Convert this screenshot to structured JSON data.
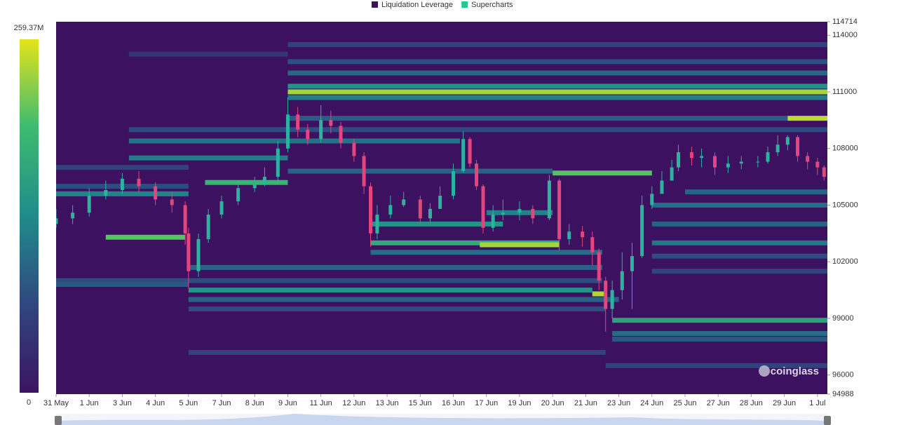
{
  "chart_data": {
    "type": "heatmap",
    "series": [
      {
        "name": "Liquidation Leverage",
        "color": "#3c1160"
      },
      {
        "name": "Supercharts",
        "color": "#22c98c"
      }
    ],
    "xlim": [
      0,
      23.3
    ],
    "xticks": [
      {
        "value": 0,
        "label": "31 May"
      },
      {
        "value": 1,
        "label": "1 Jun"
      },
      {
        "value": 2,
        "label": "3 Jun"
      },
      {
        "value": 3,
        "label": "4 Jun"
      },
      {
        "value": 4,
        "label": "5 Jun"
      },
      {
        "value": 5,
        "label": "7 Jun"
      },
      {
        "value": 6,
        "label": "8 Jun"
      },
      {
        "value": 7,
        "label": "9 Jun"
      },
      {
        "value": 8,
        "label": "11 Jun"
      },
      {
        "value": 9,
        "label": "12 Jun"
      },
      {
        "value": 10,
        "label": "13 Jun"
      },
      {
        "value": 11,
        "label": "15 Jun"
      },
      {
        "value": 12,
        "label": "16 Jun"
      },
      {
        "value": 13,
        "label": "17 Jun"
      },
      {
        "value": 14,
        "label": "19 Jun"
      },
      {
        "value": 15,
        "label": "20 Jun"
      },
      {
        "value": 16,
        "label": "21 Jun"
      },
      {
        "value": 17,
        "label": "23 Jun"
      },
      {
        "value": 18,
        "label": "24 Jun"
      },
      {
        "value": 19,
        "label": "25 Jun"
      },
      {
        "value": 20,
        "label": "27 Jun"
      },
      {
        "value": 21,
        "label": "28 Jun"
      },
      {
        "value": 22,
        "label": "29 Jun"
      },
      {
        "value": 23,
        "label": "1 Jul"
      }
    ],
    "ylim": [
      94988,
      114714
    ],
    "yticks": [
      94988,
      96000,
      99000,
      102000,
      105000,
      108000,
      111000,
      114000,
      114714
    ],
    "colorbar": {
      "lim": [
        0,
        259.37
      ],
      "ticks": [
        {
          "value": 259.37,
          "label": "259.37M"
        },
        0
      ],
      "colors": [
        "#3d1462",
        "#30477f",
        "#1f8c8b",
        "#3cbb70",
        "#e3e41c"
      ]
    },
    "heatmap": {
      "levels": [
        111000,
        111300,
        110700,
        112000,
        112600,
        113500,
        109600,
        109600,
        109000,
        108400,
        107500,
        106800,
        106700,
        106200,
        105600,
        104600,
        104000,
        103300,
        103000,
        102900,
        102500,
        101700,
        101000,
        100500,
        100300,
        100000,
        99500,
        98900,
        98200,
        97900,
        97200,
        96500,
        104000,
        103000,
        102300,
        101500,
        105000,
        105700,
        113000,
        107000,
        106000,
        100800
      ],
      "x0": [
        7,
        7,
        7,
        7,
        7,
        7,
        7,
        22.1,
        2.2,
        2.2,
        2.2,
        7,
        15,
        4.5,
        0,
        13,
        9.5,
        1.5,
        9.5,
        12.8,
        9.5,
        4,
        0,
        4,
        16.2,
        4,
        4,
        16.8,
        16.8,
        16.8,
        4,
        16.6,
        18,
        18,
        18,
        18,
        18,
        19,
        2.2,
        0,
        0,
        0
      ],
      "x1": [
        23.3,
        23.3,
        23.3,
        23.3,
        23.3,
        23.3,
        22.1,
        23.3,
        23.3,
        12.2,
        7,
        15,
        18,
        7,
        4,
        15,
        13.5,
        3.9,
        15.2,
        15.2,
        16.5,
        16.5,
        16.5,
        16.2,
        16.6,
        17,
        16.6,
        23.3,
        23.3,
        23.3,
        16.6,
        23.3,
        23.3,
        23.3,
        23.3,
        23.3,
        23.3,
        23.3,
        7,
        4,
        4,
        4
      ],
      "values": [
        235,
        140,
        115,
        95,
        75,
        60,
        85,
        245,
        70,
        105,
        115,
        90,
        205,
        185,
        120,
        120,
        140,
        205,
        170,
        235,
        100,
        90,
        70,
        140,
        240,
        90,
        70,
        160,
        100,
        80,
        60,
        60,
        90,
        110,
        70,
        60,
        100,
        90,
        45,
        60,
        70,
        80
      ]
    },
    "candles": {
      "up_color": "#2bb3a0",
      "down_color": "#e3457c",
      "x": [
        0,
        0.5,
        1,
        1.5,
        2,
        2.5,
        3,
        3.5,
        3.9,
        4,
        4.3,
        4.6,
        5,
        5.5,
        6,
        6.3,
        6.7,
        7,
        7.3,
        7.6,
        8,
        8.3,
        8.6,
        9,
        9.3,
        9.5,
        9.7,
        10.1,
        10.5,
        11,
        11.3,
        11.6,
        12,
        12.3,
        12.5,
        12.7,
        12.9,
        13.2,
        13.5,
        14,
        14.4,
        14.9,
        15.2,
        15.5,
        15.9,
        16.2,
        16.4,
        16.6,
        16.8,
        17.1,
        17.4,
        17.7,
        18,
        18.3,
        18.6,
        18.8,
        19.2,
        19.5,
        19.9,
        20.3,
        20.7,
        21.2,
        21.5,
        21.8,
        22.1,
        22.4,
        22.7,
        23,
        23.2
      ],
      "open": [
        104000,
        104300,
        104600,
        105500,
        105800,
        106400,
        106000,
        105300,
        105000,
        103500,
        101500,
        103200,
        104500,
        105200,
        105900,
        106100,
        106500,
        108000,
        109800,
        109000,
        108500,
        109500,
        109200,
        108300,
        107600,
        106000,
        103500,
        104500,
        105000,
        105300,
        104300,
        104800,
        105500,
        106800,
        108500,
        107200,
        106000,
        103800,
        104500,
        104600,
        104800,
        104300,
        106300,
        103200,
        103600,
        103300,
        102500,
        101000,
        99500,
        100500,
        101500,
        102300,
        105000,
        105600,
        106300,
        107000,
        107800,
        107500,
        107600,
        107000,
        107200,
        107300,
        107300,
        107800,
        108200,
        108600,
        107600,
        107300,
        107000
      ],
      "high": [
        104800,
        105000,
        105900,
        106300,
        106700,
        106800,
        106200,
        105700,
        105200,
        103800,
        103500,
        104800,
        105500,
        106200,
        106500,
        107000,
        108400,
        110700,
        110200,
        109300,
        110300,
        110000,
        109400,
        108500,
        107800,
        106200,
        105000,
        105500,
        105700,
        105500,
        105100,
        106000,
        107200,
        108900,
        108600,
        107400,
        106100,
        105000,
        105300,
        105200,
        105000,
        106600,
        106400,
        104000,
        103900,
        103600,
        102700,
        101200,
        101000,
        102500,
        103000,
        105500,
        106000,
        106800,
        107400,
        108200,
        108100,
        108000,
        107800,
        107600,
        107600,
        107600,
        108100,
        108700,
        108700,
        108700,
        107800,
        107500,
        107100
      ],
      "low": [
        103800,
        104000,
        104400,
        105300,
        105600,
        105700,
        105000,
        104600,
        102900,
        100600,
        101200,
        103000,
        104300,
        105000,
        105700,
        106000,
        106300,
        107800,
        108600,
        108200,
        108300,
        108800,
        108000,
        107300,
        105600,
        102800,
        103200,
        104300,
        104900,
        104000,
        104100,
        105000,
        105300,
        106700,
        107000,
        105800,
        103500,
        103600,
        104200,
        104200,
        104000,
        104200,
        102600,
        102900,
        102800,
        101800,
        100500,
        98300,
        99000,
        100000,
        99500,
        102200,
        104800,
        105800,
        106600,
        106800,
        107100,
        107000,
        106600,
        106700,
        106900,
        107000,
        107200,
        107600,
        107900,
        107300,
        106900,
        106600,
        106300
      ],
      "close": [
        104300,
        104600,
        105500,
        105800,
        106400,
        106000,
        105300,
        105000,
        103500,
        101500,
        103200,
        104500,
        105200,
        105900,
        106100,
        106500,
        108000,
        109800,
        109000,
        108500,
        109500,
        109200,
        108300,
        107600,
        106000,
        103500,
        104500,
        105000,
        105300,
        104300,
        104800,
        105500,
        106800,
        108500,
        107200,
        106000,
        103800,
        104500,
        104600,
        104800,
        104300,
        106300,
        103200,
        103600,
        103300,
        102500,
        101000,
        99500,
        100500,
        101500,
        102300,
        105000,
        105600,
        106300,
        107000,
        107800,
        107500,
        107600,
        107000,
        107200,
        107300,
        107300,
        107800,
        108200,
        108600,
        107600,
        107300,
        107000,
        106500
      ]
    },
    "watermark": "coinglass"
  }
}
